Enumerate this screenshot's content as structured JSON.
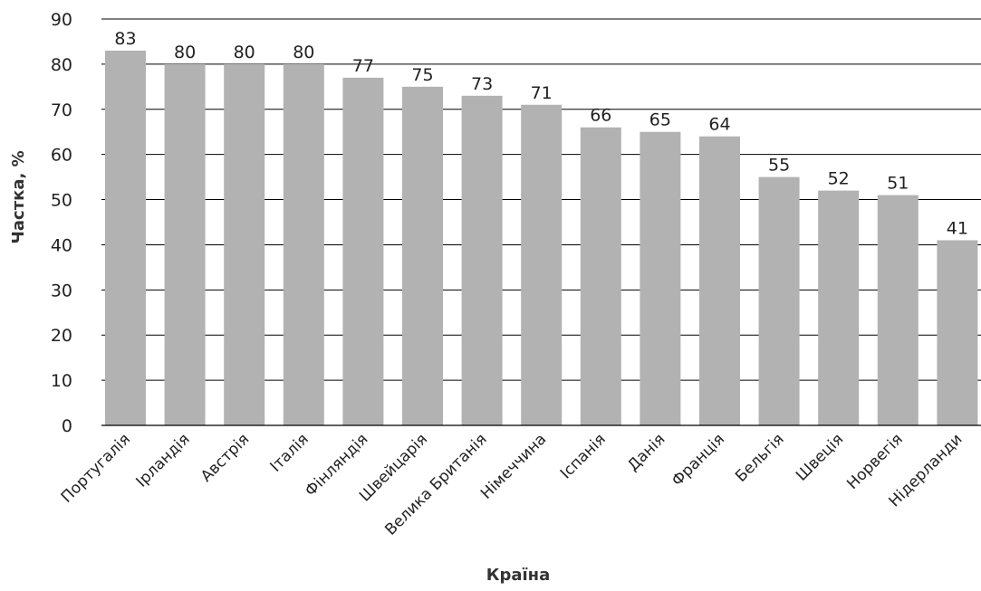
{
  "chart_data": {
    "type": "bar",
    "title": "",
    "xlabel": "Країна",
    "ylabel": "Частка, %",
    "ylim": [
      0,
      90
    ],
    "yticks": [
      0,
      10,
      20,
      30,
      40,
      50,
      60,
      70,
      80,
      90
    ],
    "grid": true,
    "bar_color": "#b2b2b2",
    "categories": [
      "Португалія",
      "Ірландія",
      "Австрія",
      "Італія",
      "Фінляндія",
      "Швейцарія",
      "Велика Британія",
      "Німеччина",
      "Іспанія",
      "Данія",
      "Франція",
      "Бельгія",
      "Швеція",
      "Норвегія",
      "Нідерланди"
    ],
    "values": [
      83,
      80,
      80,
      80,
      77,
      75,
      73,
      71,
      66,
      65,
      64,
      55,
      52,
      51,
      41
    ]
  }
}
